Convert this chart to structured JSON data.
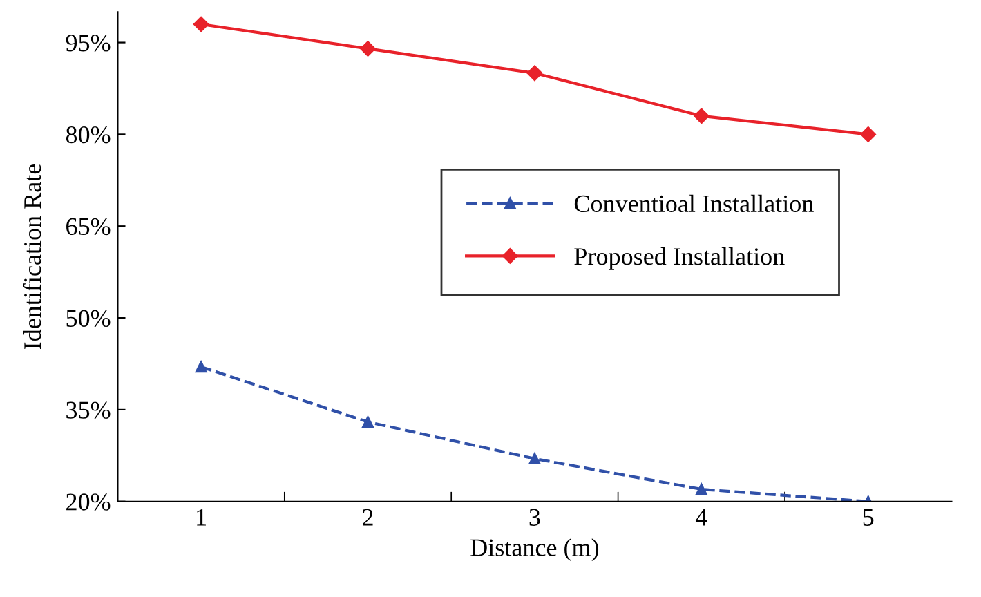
{
  "chart_data": {
    "type": "line",
    "xlabel": "Distance (m)",
    "ylabel": "Identification Rate",
    "categories": [
      "1",
      "2",
      "3",
      "4",
      "5"
    ],
    "series": [
      {
        "name": "Conventioal Installation",
        "color": "#3050a8",
        "values": [
          42,
          33,
          27,
          22,
          20
        ],
        "marker": "triangle",
        "line_style": "dashed"
      },
      {
        "name": "Proposed Installation",
        "color": "#e8222a",
        "values": [
          98,
          94,
          90,
          83,
          80
        ],
        "marker": "diamond",
        "line_style": "solid"
      }
    ],
    "ylim": [
      20,
      100
    ],
    "yticks": [
      {
        "value": 20,
        "label": "20%"
      },
      {
        "value": 35,
        "label": "35%"
      },
      {
        "value": 50,
        "label": "50%"
      },
      {
        "value": 65,
        "label": "65%"
      },
      {
        "value": 80,
        "label": "80%"
      },
      {
        "value": 95,
        "label": "95%"
      }
    ],
    "grid": false,
    "legend": "right"
  }
}
